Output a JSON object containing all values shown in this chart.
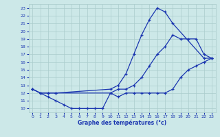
{
  "background_color": "#cce8e8",
  "grid_color": "#aacccc",
  "line_color": "#1a35b0",
  "xlabel": "Graphe des températures (°c)",
  "xlabel_color": "#1a35b0",
  "xlim": [
    -0.5,
    23.5
  ],
  "ylim": [
    9.5,
    23.5
  ],
  "yticks": [
    10,
    11,
    12,
    13,
    14,
    15,
    16,
    17,
    18,
    19,
    20,
    21,
    22,
    23
  ],
  "xticks": [
    0,
    1,
    2,
    3,
    4,
    5,
    6,
    7,
    8,
    9,
    10,
    11,
    12,
    13,
    14,
    15,
    16,
    17,
    18,
    19,
    20,
    21,
    22,
    23
  ],
  "line1_x": [
    0,
    1,
    2,
    3,
    10,
    11,
    12,
    13,
    14,
    15,
    16,
    17,
    18,
    22,
    23
  ],
  "line1_y": [
    12.5,
    12.0,
    12.0,
    12.0,
    12.5,
    13.0,
    14.5,
    17.0,
    19.5,
    21.5,
    23.0,
    22.5,
    21.0,
    16.5,
    16.5
  ],
  "line2_x": [
    0,
    1,
    2,
    3,
    10,
    11,
    12,
    13,
    14,
    15,
    16,
    17,
    18,
    19,
    20,
    21,
    22,
    23
  ],
  "line2_y": [
    12.5,
    12.0,
    12.0,
    12.0,
    12.0,
    12.5,
    12.5,
    13.0,
    14.0,
    15.5,
    17.0,
    18.0,
    19.5,
    19.0,
    19.0,
    19.0,
    17.0,
    16.5
  ],
  "line3_x": [
    0,
    1,
    2,
    3,
    4,
    5,
    6,
    7,
    8,
    9,
    10,
    11,
    12,
    13,
    14,
    15,
    16,
    17,
    18,
    19,
    20,
    21,
    22,
    23
  ],
  "line3_y": [
    12.5,
    12.0,
    11.5,
    11.0,
    10.5,
    10.0,
    10.0,
    10.0,
    10.0,
    10.0,
    12.0,
    11.5,
    12.0,
    12.0,
    12.0,
    12.0,
    12.0,
    12.0,
    12.5,
    14.0,
    15.0,
    15.5,
    16.0,
    16.5
  ],
  "marker": "+"
}
